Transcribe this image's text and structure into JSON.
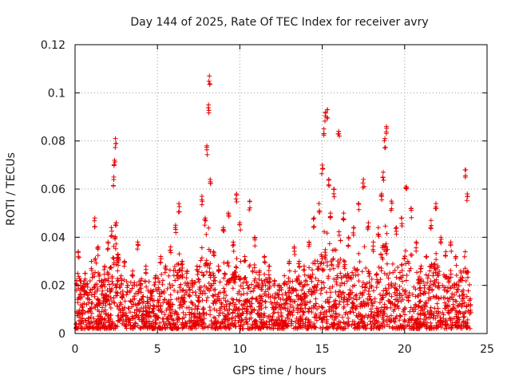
{
  "chart_data": {
    "type": "scatter",
    "title": "Day 144 of 2025, Rate Of TEC Index for receiver avry",
    "xlabel": "GPS time / hours",
    "ylabel": "ROTI / TECUs",
    "xlim": [
      0,
      25
    ],
    "ylim": [
      0,
      0.12
    ],
    "xticks": [
      0,
      5,
      10,
      15,
      20,
      25
    ],
    "xtick_labels": [
      "0",
      "5",
      "10",
      "15",
      "20",
      "25"
    ],
    "yticks": [
      0,
      0.02,
      0.04,
      0.06,
      0.08,
      0.1,
      0.12
    ],
    "ytick_labels": [
      "0",
      "0.02",
      "0.04",
      "0.06",
      "0.08",
      "0.1",
      "0.12"
    ],
    "grid": true,
    "marker": "+",
    "color": "#e60000",
    "series": [
      {
        "name": "avry ROTI",
        "x": [
          0.1,
          0.2,
          0.3,
          0.45,
          0.6,
          0.8,
          1.0,
          1.2,
          1.4,
          1.6,
          1.8,
          2.0,
          2.2,
          2.35,
          2.4,
          2.45,
          2.5,
          2.6,
          2.8,
          3.0,
          3.2,
          3.5,
          3.8,
          4.0,
          4.3,
          4.6,
          4.9,
          5.2,
          5.5,
          5.8,
          6.1,
          6.3,
          6.5,
          6.8,
          7.1,
          7.4,
          7.7,
          7.9,
          8.0,
          8.1,
          8.15,
          8.2,
          8.4,
          8.7,
          9.0,
          9.3,
          9.6,
          9.8,
          10.0,
          10.3,
          10.6,
          10.9,
          11.2,
          11.5,
          11.8,
          12.1,
          12.4,
          12.7,
          13.0,
          13.3,
          13.6,
          13.9,
          14.2,
          14.5,
          14.8,
          15.0,
          15.1,
          15.2,
          15.3,
          15.4,
          15.5,
          15.7,
          16.0,
          16.3,
          16.6,
          16.9,
          17.2,
          17.5,
          17.8,
          18.1,
          18.4,
          18.6,
          18.7,
          18.8,
          18.9,
          19.2,
          19.5,
          19.8,
          20.1,
          20.4,
          20.7,
          21.0,
          21.3,
          21.6,
          21.9,
          22.2,
          22.5,
          22.8,
          23.1,
          23.4,
          23.7,
          23.8,
          24.0
        ],
        "y": [
          0.022,
          0.034,
          0.018,
          0.012,
          0.025,
          0.016,
          0.03,
          0.048,
          0.036,
          0.022,
          0.028,
          0.038,
          0.044,
          0.065,
          0.072,
          0.081,
          0.046,
          0.033,
          0.024,
          0.03,
          0.02,
          0.026,
          0.038,
          0.022,
          0.028,
          0.018,
          0.024,
          0.032,
          0.028,
          0.036,
          0.045,
          0.054,
          0.03,
          0.026,
          0.022,
          0.028,
          0.057,
          0.048,
          0.078,
          0.095,
          0.107,
          0.064,
          0.034,
          0.028,
          0.044,
          0.05,
          0.038,
          0.058,
          0.046,
          0.032,
          0.055,
          0.04,
          0.026,
          0.032,
          0.028,
          0.022,
          0.02,
          0.024,
          0.03,
          0.036,
          0.03,
          0.028,
          0.038,
          0.048,
          0.054,
          0.07,
          0.085,
          0.092,
          0.093,
          0.064,
          0.05,
          0.06,
          0.084,
          0.05,
          0.04,
          0.044,
          0.054,
          0.064,
          0.046,
          0.038,
          0.044,
          0.058,
          0.067,
          0.081,
          0.086,
          0.055,
          0.044,
          0.048,
          0.061,
          0.052,
          0.038,
          0.028,
          0.032,
          0.047,
          0.054,
          0.04,
          0.034,
          0.038,
          0.032,
          0.026,
          0.068,
          0.058,
          0.012
        ]
      }
    ],
    "baseline_band": {
      "description": "dense cloud of points between these ROTI values across the whole day",
      "low": 0.002,
      "high": 0.02
    }
  }
}
